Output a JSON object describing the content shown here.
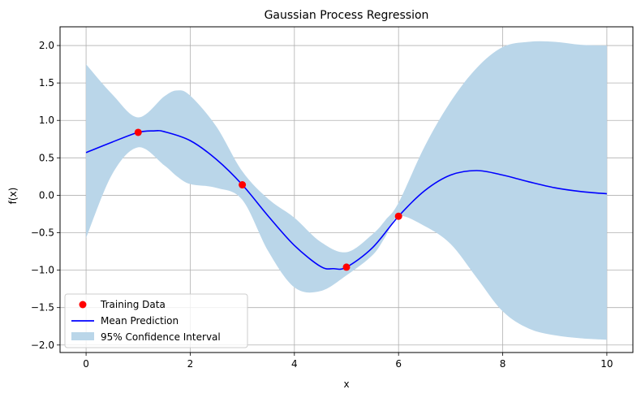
{
  "chart_data": {
    "type": "line",
    "title": "Gaussian Process Regression",
    "xlabel": "x",
    "ylabel": "f(x)",
    "xlim": [
      -0.5,
      10.5
    ],
    "ylim": [
      -2.1,
      2.25
    ],
    "xticks": [
      0,
      2,
      4,
      6,
      8,
      10
    ],
    "xtick_labels": [
      "0",
      "2",
      "4",
      "6",
      "8",
      "10"
    ],
    "yticks": [
      -2.0,
      -1.5,
      -1.0,
      -0.5,
      0.0,
      0.5,
      1.0,
      1.5,
      2.0
    ],
    "ytick_labels": [
      "−2.0",
      "−1.5",
      "−1.0",
      "−0.5",
      "0.0",
      "0.5",
      "1.0",
      "1.5",
      "2.0"
    ],
    "grid": true,
    "legend_position": "lower-left",
    "colors": {
      "training": "#ff0000",
      "mean": "#0000ff",
      "band": "#bad6e9",
      "grid": "#b0b0b0"
    },
    "series": [
      {
        "name": "Training Data",
        "kind": "scatter",
        "x": [
          1,
          3,
          5,
          6
        ],
        "y": [
          0.84,
          0.14,
          -0.96,
          -0.28
        ]
      },
      {
        "name": "Mean Prediction",
        "kind": "line",
        "x": [
          0,
          0.5,
          1,
          1.3,
          1.5,
          2,
          2.5,
          3,
          3.5,
          4,
          4.5,
          4.75,
          5,
          5.5,
          6,
          6.5,
          7,
          7.5,
          8,
          8.5,
          9,
          9.5,
          10
        ],
        "y": [
          0.57,
          0.71,
          0.84,
          0.86,
          0.85,
          0.73,
          0.48,
          0.14,
          -0.28,
          -0.67,
          -0.95,
          -0.98,
          -0.96,
          -0.7,
          -0.28,
          0.06,
          0.27,
          0.33,
          0.27,
          0.18,
          0.1,
          0.05,
          0.02
        ]
      },
      {
        "name": "95% Confidence Interval",
        "kind": "band",
        "x": [
          0,
          0.5,
          1,
          1.5,
          1.75,
          2,
          2.5,
          3,
          3.5,
          4,
          4.5,
          5,
          5.5,
          5.75,
          6,
          6.5,
          7,
          7.5,
          8,
          8.5,
          9,
          9.5,
          10
        ],
        "lower": [
          -0.57,
          0.28,
          0.64,
          0.4,
          0.25,
          0.15,
          0.1,
          -0.06,
          -0.75,
          -1.23,
          -1.28,
          -1.07,
          -0.8,
          -0.55,
          -0.28,
          -0.41,
          -0.65,
          -1.1,
          -1.55,
          -1.78,
          -1.87,
          -1.91,
          -1.93
        ],
        "upper": [
          1.75,
          1.35,
          1.04,
          1.32,
          1.4,
          1.33,
          0.92,
          0.32,
          -0.05,
          -0.3,
          -0.62,
          -0.76,
          -0.52,
          -0.33,
          -0.1,
          0.65,
          1.25,
          1.7,
          1.98,
          2.05,
          2.05,
          2.01,
          2.0
        ]
      }
    ]
  }
}
